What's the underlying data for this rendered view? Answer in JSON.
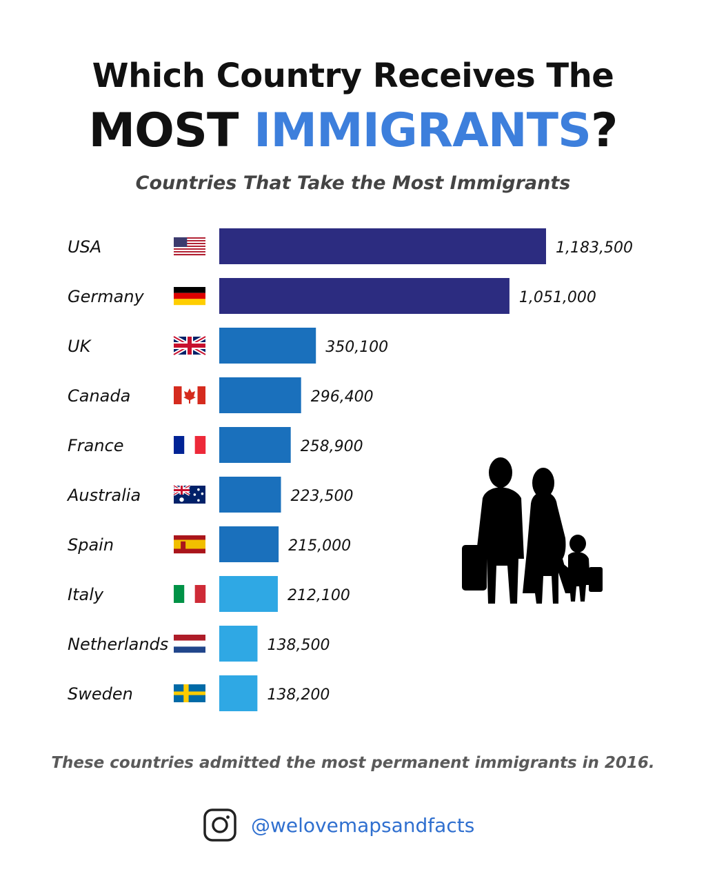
{
  "heading": {
    "line1": "Which Country Receives The",
    "line2_part1": "MOST ",
    "line2_accent": "IMMIGRANTS",
    "line2_part2": "?"
  },
  "footnote": "These countries admitted the most permanent immigrants in 2016.",
  "social": {
    "icon": "instagram-icon",
    "handle": "@welovemapsandfacts"
  },
  "illustration": "family-silhouette",
  "chart_data": {
    "type": "bar",
    "orientation": "horizontal",
    "title": "Countries That Take the Most Immigrants",
    "xlabel": "",
    "ylabel": "",
    "xlim": [
      0,
      1183500
    ],
    "grid": false,
    "categories": [
      "USA",
      "Germany",
      "UK",
      "Canada",
      "France",
      "Australia",
      "Spain",
      "Italy",
      "Netherlands",
      "Sweden"
    ],
    "values": [
      1183500,
      1051000,
      350100,
      296400,
      258900,
      223500,
      215000,
      212100,
      138500,
      138200
    ],
    "value_labels": [
      "1,183,500",
      "1,051,000",
      "350,100",
      "296,400",
      "258,900",
      "223,500",
      "215,000",
      "212,100",
      "138,500",
      "138,200"
    ],
    "flags": [
      "usa",
      "germany",
      "uk",
      "canada",
      "france",
      "australia",
      "spain",
      "italy",
      "netherlands",
      "sweden"
    ],
    "bar_colors": [
      "#2c2c80",
      "#2c2c80",
      "#1a70bc",
      "#1a70bc",
      "#1a70bc",
      "#1a70bc",
      "#1a70bc",
      "#2fa8e4",
      "#2fa8e4",
      "#2fa8e4"
    ]
  }
}
